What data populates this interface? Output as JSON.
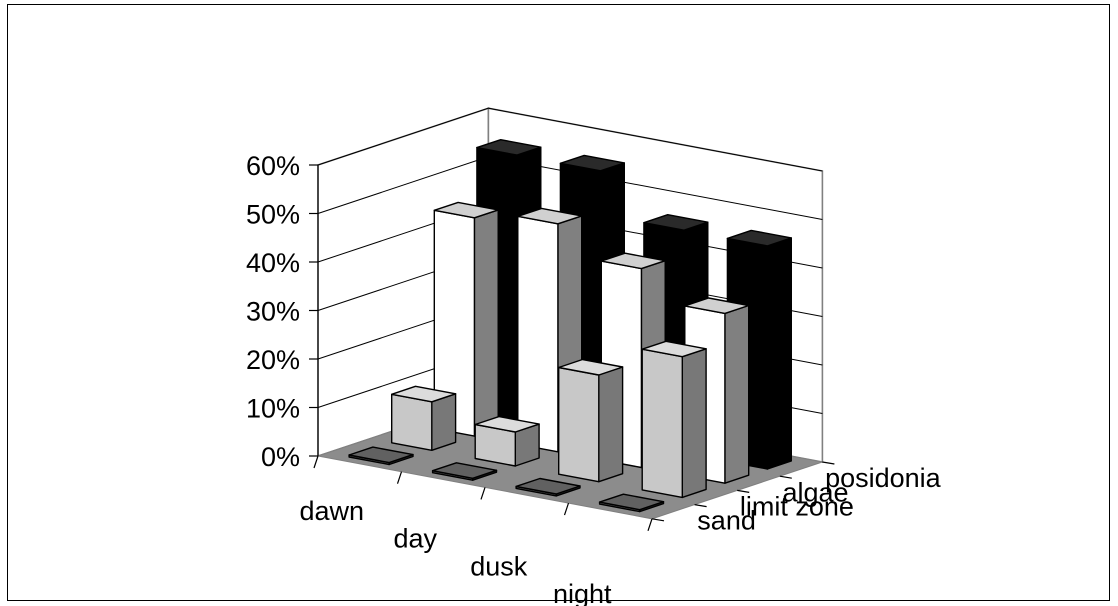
{
  "chart_data": {
    "type": "bar",
    "subtype": "3d-column",
    "title": "",
    "xlabel": "",
    "ylabel": "",
    "ylim": [
      0,
      60
    ],
    "y_ticks": [
      "0%",
      "10%",
      "20%",
      "30%",
      "40%",
      "50%",
      "60%"
    ],
    "categories": [
      "dawn",
      "day",
      "dusk",
      "night"
    ],
    "series": [
      {
        "name": "sand",
        "values": [
          0,
          0,
          0,
          0
        ],
        "color": "#4d4d4d"
      },
      {
        "name": "limit zone",
        "values": [
          10,
          7,
          22,
          29
        ],
        "color": "#c8c8c8"
      },
      {
        "name": "algae",
        "values": [
          45,
          47,
          41,
          35
        ],
        "color": "#ffffff"
      },
      {
        "name": "posidonia",
        "values": [
          55,
          55,
          46,
          46
        ],
        "color": "#000000"
      }
    ],
    "grid": true,
    "floor_color": "#8c8c8c"
  }
}
